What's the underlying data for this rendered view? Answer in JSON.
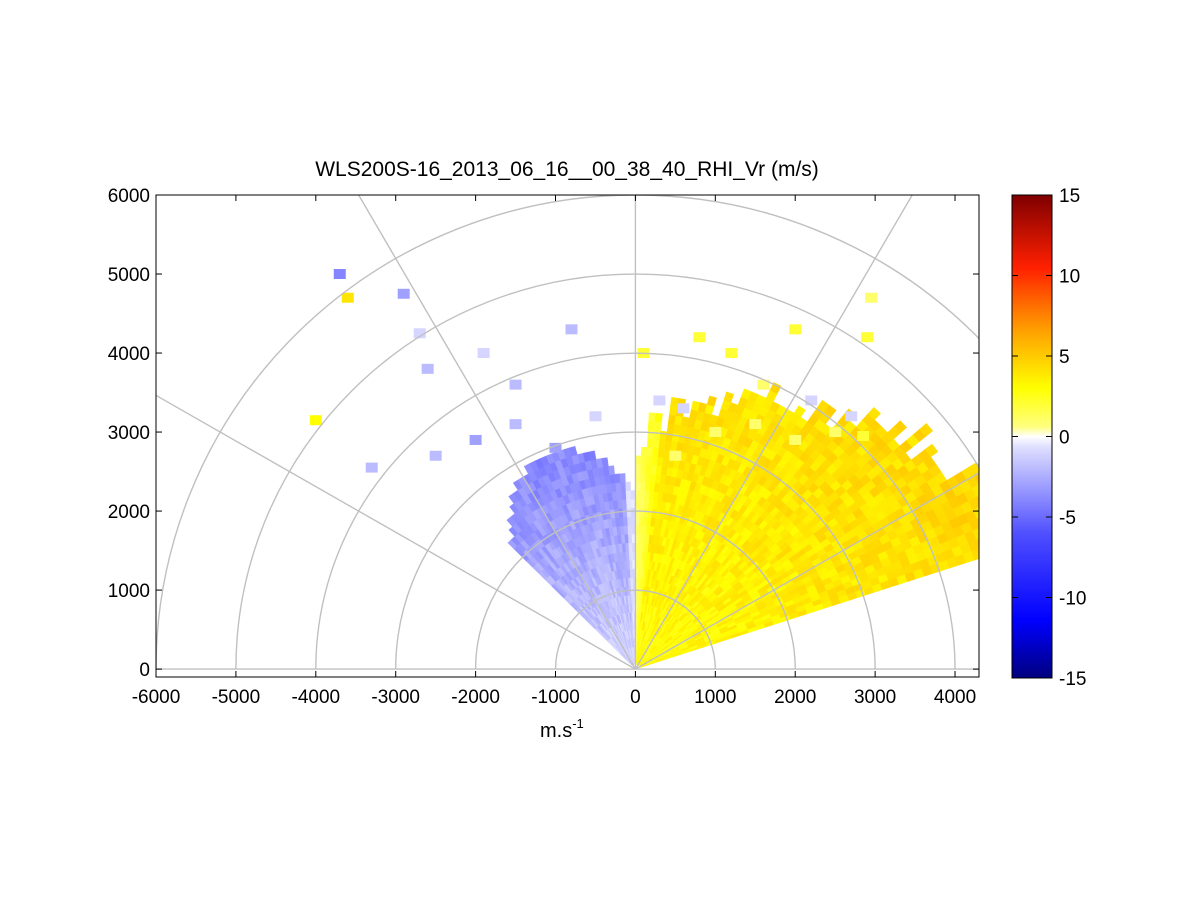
{
  "chart_data": {
    "type": "heatmap",
    "title": "WLS200S-16_2013_06_16__00_38_40_RHI_Vr (m/s)",
    "xlabel_base": "m.s",
    "xlabel_exp": "-1",
    "xlim": [
      -6000,
      4300
    ],
    "ylim": [
      -100,
      6000
    ],
    "x_ticks": [
      "-6000",
      "-5000",
      "-4000",
      "-3000",
      "-2000",
      "-1000",
      "0",
      "1000",
      "2000",
      "3000",
      "4000"
    ],
    "y_ticks": [
      "0",
      "1000",
      "2000",
      "3000",
      "4000",
      "5000",
      "6000"
    ],
    "polar_grid_radii": [
      1000,
      2000,
      3000,
      4000,
      5000,
      6000
    ],
    "polar_grid_angles_deg": [
      0,
      30,
      60,
      90,
      120,
      150,
      180
    ],
    "colorbar": {
      "range": [
        -15,
        15
      ],
      "ticks": [
        "15",
        "10",
        "5",
        "0",
        "-5",
        "-10",
        "-15"
      ],
      "colors": [
        "#00007f",
        "#0000ff",
        "#6a6aff",
        "#ffffff",
        "#ffff00",
        "#ff8c00",
        "#ff0000",
        "#7f0000"
      ]
    },
    "sectors": [
      {
        "name": "",
        "angle_from_deg": 90,
        "angle_to_deg": 162,
        "range_max_m": 4900,
        "vr_near_ms": 3,
        "vr_far_ms": 4.5
      },
      {
        "name": "",
        "angle_from_deg": 45,
        "angle_to_deg": 90,
        "range_max_m": 2900,
        "vr_near_ms": -1,
        "vr_far_ms": -4
      }
    ],
    "scattered_cells": [
      {
        "x": -3300,
        "y": 2550,
        "vr": -2
      },
      {
        "x": -2500,
        "y": 2700,
        "vr": -2
      },
      {
        "x": -2000,
        "y": 2900,
        "vr": -3
      },
      {
        "x": -1500,
        "y": 3100,
        "vr": -2
      },
      {
        "x": -1000,
        "y": 2800,
        "vr": -3
      },
      {
        "x": -500,
        "y": 3200,
        "vr": -1
      },
      {
        "x": -1500,
        "y": 3600,
        "vr": -2
      },
      {
        "x": -2600,
        "y": 3800,
        "vr": -2
      },
      {
        "x": -1900,
        "y": 4000,
        "vr": -1
      },
      {
        "x": -800,
        "y": 4300,
        "vr": -2
      },
      {
        "x": -2900,
        "y": 4750,
        "vr": -3
      },
      {
        "x": -2700,
        "y": 4250,
        "vr": -1
      },
      {
        "x": -3700,
        "y": 5000,
        "vr": -4
      },
      {
        "x": -3600,
        "y": 4700,
        "vr": 4
      },
      {
        "x": -4000,
        "y": 3150,
        "vr": 3
      },
      {
        "x": 100,
        "y": 4000,
        "vr": 2
      },
      {
        "x": 600,
        "y": 3300,
        "vr": -1
      },
      {
        "x": 500,
        "y": 2700,
        "vr": 1
      },
      {
        "x": 1000,
        "y": 3000,
        "vr": 1
      },
      {
        "x": 1500,
        "y": 3100,
        "vr": 1
      },
      {
        "x": 2000,
        "y": 2900,
        "vr": 1
      },
      {
        "x": 2500,
        "y": 3000,
        "vr": 1
      },
      {
        "x": 2850,
        "y": 2950,
        "vr": 2
      },
      {
        "x": 1200,
        "y": 4000,
        "vr": 2
      },
      {
        "x": 1600,
        "y": 3600,
        "vr": 1
      },
      {
        "x": 2200,
        "y": 3400,
        "vr": -1
      },
      {
        "x": 2700,
        "y": 3200,
        "vr": -1
      },
      {
        "x": 2000,
        "y": 4300,
        "vr": 2
      },
      {
        "x": 2900,
        "y": 4200,
        "vr": 2
      },
      {
        "x": 2950,
        "y": 4700,
        "vr": 1
      },
      {
        "x": 800,
        "y": 4200,
        "vr": 2
      },
      {
        "x": 300,
        "y": 3400,
        "vr": -1
      }
    ]
  }
}
